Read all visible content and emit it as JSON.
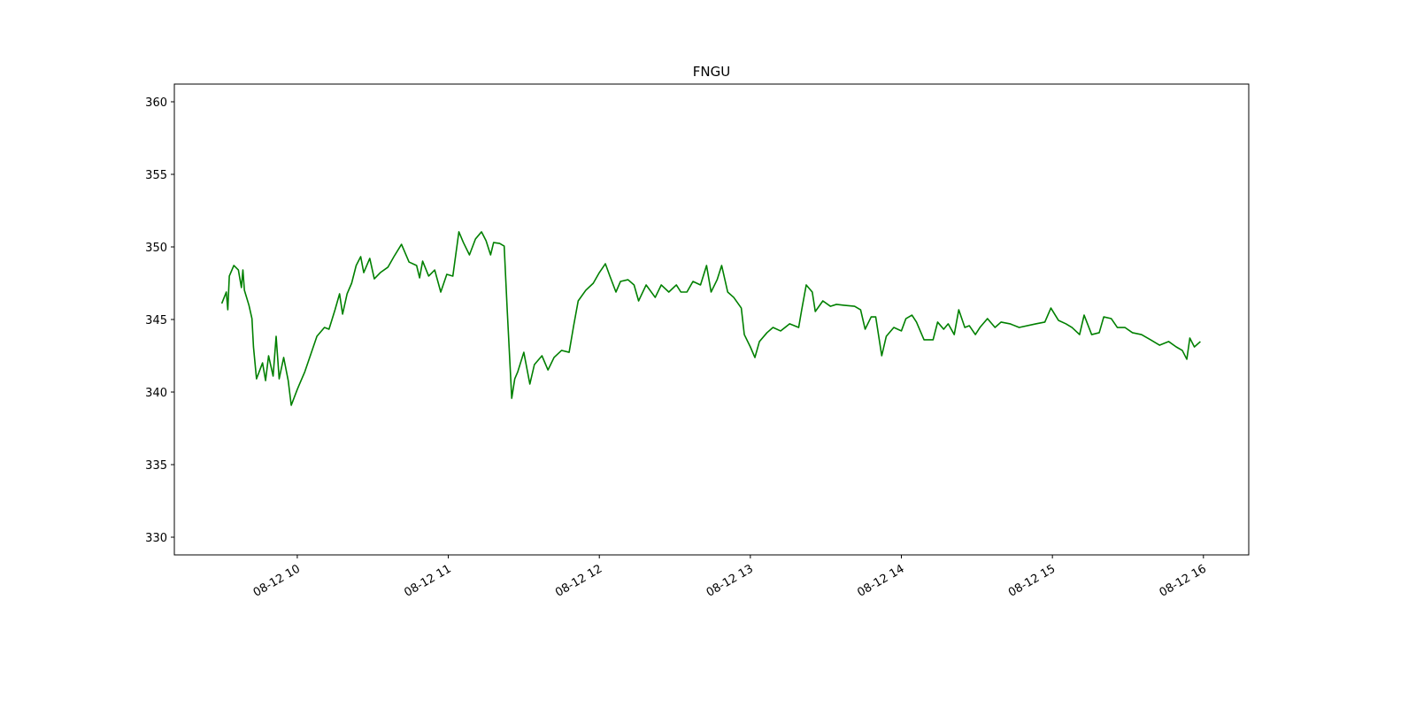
{
  "chart_data": {
    "type": "line",
    "title": "FNGU",
    "series": [
      {
        "name": "FNGU",
        "color": "#008000",
        "x": [
          9.5,
          9.53,
          9.54,
          9.55,
          9.58,
          9.61,
          9.63,
          9.64,
          9.65,
          9.68,
          9.7,
          9.71,
          9.73,
          9.77,
          9.79,
          9.81,
          9.84,
          9.86,
          9.88,
          9.91,
          9.94,
          9.96,
          10.0,
          10.01,
          10.05,
          10.09,
          10.13,
          10.18,
          10.21,
          10.25,
          10.28,
          10.3,
          10.33,
          10.36,
          10.39,
          10.42,
          10.44,
          10.48,
          10.51,
          10.55,
          10.6,
          10.64,
          10.69,
          10.74,
          10.79,
          10.81,
          10.83,
          10.87,
          10.91,
          10.95,
          10.99,
          11.03,
          11.07,
          11.1,
          11.14,
          11.18,
          11.22,
          11.25,
          11.28,
          11.3,
          11.34,
          11.37,
          11.39,
          11.42,
          11.44,
          11.46,
          11.5,
          11.54,
          11.57,
          11.62,
          11.66,
          11.7,
          11.75,
          11.8,
          11.83,
          11.86,
          11.91,
          11.96,
          12.0,
          12.04,
          12.07,
          12.11,
          12.14,
          12.19,
          12.23,
          12.26,
          12.31,
          12.37,
          12.41,
          12.46,
          12.51,
          12.54,
          12.58,
          12.62,
          12.67,
          12.71,
          12.74,
          12.78,
          12.81,
          12.85,
          12.89,
          12.94,
          12.96,
          13.0,
          13.03,
          13.06,
          13.11,
          13.15,
          13.2,
          13.26,
          13.32,
          13.34,
          13.37,
          13.41,
          13.43,
          13.48,
          13.53,
          13.57,
          13.62,
          13.69,
          13.73,
          13.76,
          13.8,
          13.83,
          13.87,
          13.9,
          13.95,
          14.0,
          14.03,
          14.07,
          14.1,
          14.15,
          14.21,
          14.24,
          14.28,
          14.31,
          14.35,
          14.38,
          14.42,
          14.45,
          14.49,
          14.52,
          14.57,
          14.62,
          14.66,
          14.72,
          14.78,
          14.89,
          14.95,
          14.99,
          15.04,
          15.09,
          15.13,
          15.18,
          15.21,
          15.26,
          15.31,
          15.34,
          15.39,
          15.43,
          15.48,
          15.53,
          15.59,
          15.65,
          15.71,
          15.77,
          15.82,
          15.86,
          15.89,
          15.91,
          15.94,
          15.98
        ],
        "values": [
          346.1,
          346.89,
          345.67,
          347.99,
          348.72,
          348.41,
          347.2,
          348.41,
          347.01,
          345.98,
          345.06,
          343.11,
          340.91,
          342.01,
          340.79,
          342.5,
          341.1,
          343.84,
          340.91,
          342.38,
          340.79,
          339.09,
          340.18,
          340.43,
          341.4,
          342.62,
          343.84,
          344.45,
          344.33,
          345.67,
          346.77,
          345.37,
          346.77,
          347.5,
          348.72,
          349.33,
          348.23,
          349.21,
          347.8,
          348.23,
          348.6,
          349.33,
          350.18,
          348.96,
          348.72,
          347.87,
          349.02,
          347.99,
          348.41,
          346.89,
          348.11,
          347.99,
          351.04,
          350.3,
          349.45,
          350.55,
          351.04,
          350.43,
          349.45,
          350.3,
          350.24,
          350.06,
          345.67,
          339.57,
          340.91,
          341.4,
          342.74,
          340.55,
          341.89,
          342.5,
          341.52,
          342.38,
          342.87,
          342.74,
          344.57,
          346.28,
          347.01,
          347.5,
          348.23,
          348.84,
          347.99,
          346.89,
          347.62,
          347.74,
          347.38,
          346.28,
          347.38,
          346.52,
          347.38,
          346.89,
          347.38,
          346.89,
          346.89,
          347.62,
          347.38,
          348.72,
          346.89,
          347.74,
          348.72,
          346.89,
          346.52,
          345.79,
          343.96,
          343.11,
          342.38,
          343.48,
          344.09,
          344.45,
          344.21,
          344.7,
          344.45,
          345.67,
          347.38,
          346.89,
          345.55,
          346.28,
          345.91,
          346.04,
          345.98,
          345.91,
          345.67,
          344.33,
          345.18,
          345.18,
          342.5,
          343.84,
          344.45,
          344.21,
          345.06,
          345.3,
          344.82,
          343.6,
          343.6,
          344.82,
          344.33,
          344.7,
          343.96,
          345.67,
          344.45,
          344.57,
          343.96,
          344.45,
          345.06,
          344.45,
          344.82,
          344.7,
          344.45,
          344.7,
          344.82,
          345.79,
          344.94,
          344.7,
          344.45,
          343.96,
          345.3,
          343.96,
          344.09,
          345.18,
          345.06,
          344.45,
          344.45,
          344.09,
          343.96,
          343.6,
          343.23,
          343.48,
          343.11,
          342.87,
          342.26,
          343.72,
          343.11,
          343.48
        ]
      }
    ],
    "xlim": [
      9.186,
      16.3
    ],
    "xticks": [
      {
        "value": 10,
        "label": "08-12 10"
      },
      {
        "value": 11,
        "label": "08-12 11"
      },
      {
        "value": 12,
        "label": "08-12 12"
      },
      {
        "value": 13,
        "label": "08-12 13"
      },
      {
        "value": 14,
        "label": "08-12 14"
      },
      {
        "value": 15,
        "label": "08-12 15"
      },
      {
        "value": 16,
        "label": "08-12 16"
      }
    ],
    "ylim": [
      328.78,
      361.22
    ],
    "yticks": [
      330,
      335,
      340,
      345,
      350,
      355,
      360
    ],
    "grid": false
  }
}
